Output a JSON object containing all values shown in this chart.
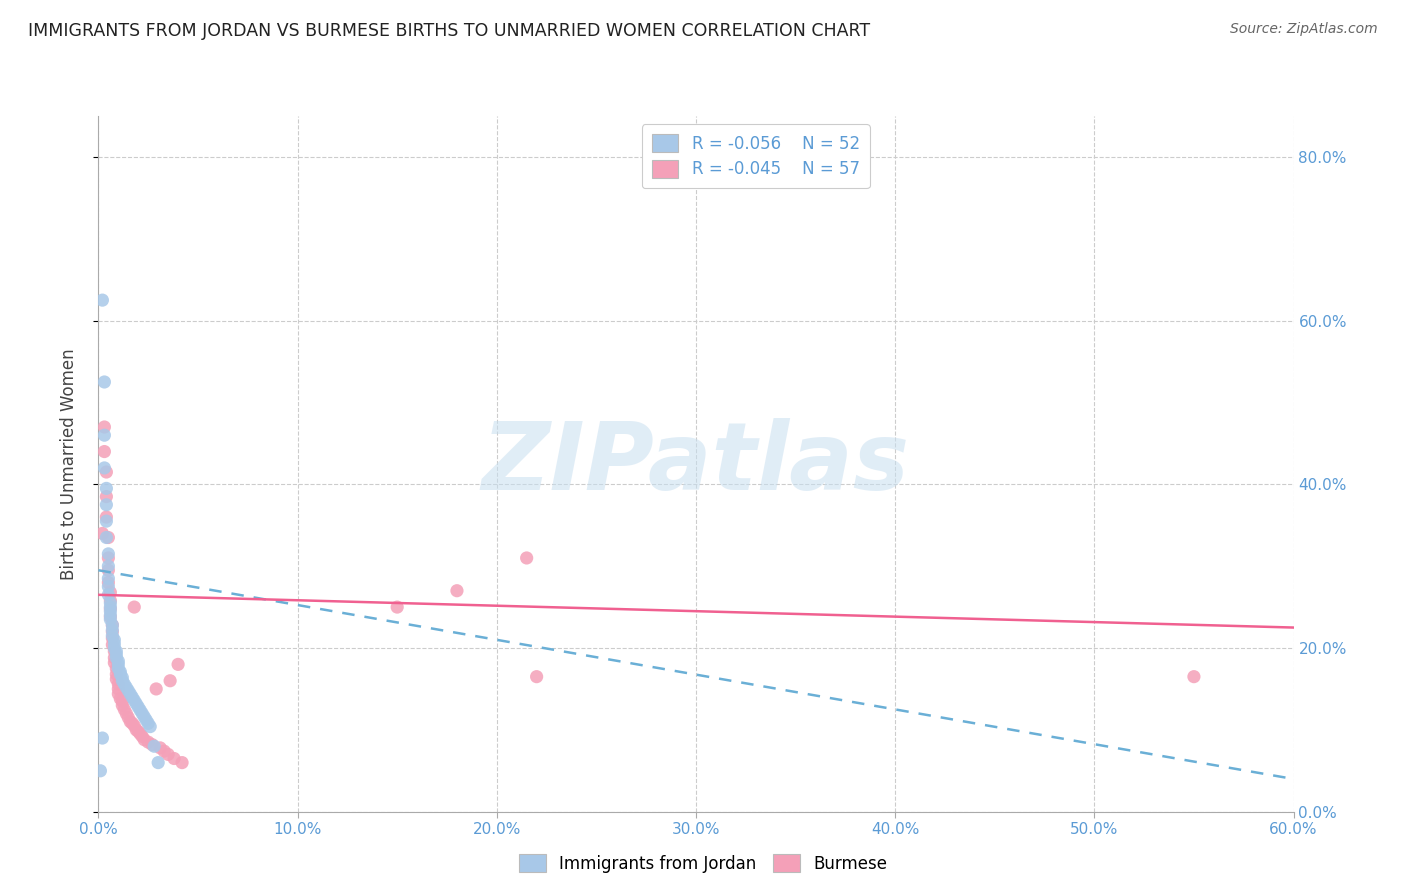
{
  "title": "IMMIGRANTS FROM JORDAN VS BURMESE BIRTHS TO UNMARRIED WOMEN CORRELATION CHART",
  "source": "Source: ZipAtlas.com",
  "ylabel": "Births to Unmarried Women",
  "xmin": 0.0,
  "xmax": 0.6,
  "ymin": 0.0,
  "ymax": 0.85,
  "legend_r1": "-0.056",
  "legend_n1": "52",
  "legend_r2": "-0.045",
  "legend_n2": "57",
  "color_jordan": "#a8c8e8",
  "color_burmese": "#f4a0b8",
  "watermark_text": "ZIPatlas",
  "jordan_scatter_x": [
    0.001,
    0.002,
    0.002,
    0.003,
    0.003,
    0.003,
    0.004,
    0.004,
    0.004,
    0.004,
    0.005,
    0.005,
    0.005,
    0.005,
    0.005,
    0.006,
    0.006,
    0.006,
    0.006,
    0.006,
    0.007,
    0.007,
    0.007,
    0.008,
    0.008,
    0.008,
    0.009,
    0.009,
    0.009,
    0.01,
    0.01,
    0.01,
    0.011,
    0.011,
    0.012,
    0.012,
    0.013,
    0.014,
    0.015,
    0.016,
    0.017,
    0.018,
    0.019,
    0.02,
    0.021,
    0.022,
    0.023,
    0.024,
    0.025,
    0.026,
    0.028,
    0.03
  ],
  "jordan_scatter_y": [
    0.05,
    0.09,
    0.625,
    0.525,
    0.46,
    0.42,
    0.395,
    0.375,
    0.355,
    0.335,
    0.315,
    0.3,
    0.285,
    0.275,
    0.265,
    0.255,
    0.25,
    0.245,
    0.24,
    0.235,
    0.228,
    0.222,
    0.215,
    0.21,
    0.205,
    0.2,
    0.196,
    0.192,
    0.188,
    0.184,
    0.18,
    0.175,
    0.171,
    0.168,
    0.164,
    0.16,
    0.156,
    0.152,
    0.148,
    0.144,
    0.14,
    0.136,
    0.132,
    0.128,
    0.124,
    0.12,
    0.116,
    0.112,
    0.108,
    0.104,
    0.08,
    0.06
  ],
  "burmese_scatter_x": [
    0.002,
    0.003,
    0.003,
    0.004,
    0.004,
    0.004,
    0.005,
    0.005,
    0.005,
    0.005,
    0.006,
    0.006,
    0.006,
    0.006,
    0.007,
    0.007,
    0.007,
    0.007,
    0.008,
    0.008,
    0.008,
    0.009,
    0.009,
    0.009,
    0.01,
    0.01,
    0.01,
    0.011,
    0.012,
    0.012,
    0.013,
    0.014,
    0.015,
    0.016,
    0.017,
    0.018,
    0.018,
    0.019,
    0.02,
    0.021,
    0.022,
    0.023,
    0.025,
    0.027,
    0.029,
    0.031,
    0.033,
    0.035,
    0.036,
    0.038,
    0.04,
    0.042,
    0.15,
    0.18,
    0.215,
    0.22,
    0.55
  ],
  "burmese_scatter_y": [
    0.34,
    0.47,
    0.44,
    0.415,
    0.385,
    0.36,
    0.335,
    0.31,
    0.295,
    0.28,
    0.268,
    0.258,
    0.248,
    0.238,
    0.228,
    0.22,
    0.212,
    0.204,
    0.196,
    0.188,
    0.182,
    0.175,
    0.168,
    0.162,
    0.156,
    0.15,
    0.144,
    0.138,
    0.135,
    0.13,
    0.125,
    0.12,
    0.115,
    0.11,
    0.108,
    0.105,
    0.25,
    0.1,
    0.098,
    0.095,
    0.092,
    0.088,
    0.085,
    0.082,
    0.15,
    0.078,
    0.074,
    0.07,
    0.16,
    0.065,
    0.18,
    0.06,
    0.25,
    0.27,
    0.31,
    0.165,
    0.165
  ],
  "jordan_line_x": [
    0.0,
    0.6
  ],
  "jordan_line_y": [
    0.295,
    0.04
  ],
  "burmese_line_x": [
    0.0,
    0.6
  ],
  "burmese_line_y": [
    0.265,
    0.225
  ],
  "x_ticks": [
    0.0,
    0.1,
    0.2,
    0.3,
    0.4,
    0.5,
    0.6
  ],
  "y_ticks": [
    0.0,
    0.2,
    0.4,
    0.6,
    0.8
  ]
}
